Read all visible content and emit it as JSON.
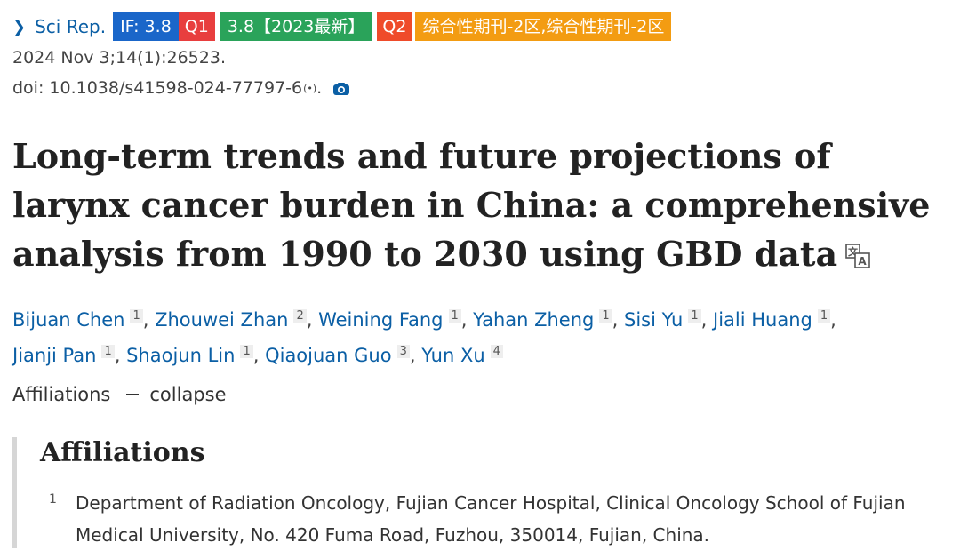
{
  "journal": {
    "name": "Sci Rep.",
    "badges": {
      "impact_factor": "IF: 3.8",
      "jcr_quartile": "Q1",
      "cas": "3.8【2023最新】",
      "cas_quartile": "Q2",
      "category": "综合性期刊-2区,综合性期刊-2区"
    }
  },
  "citation": "2024 Nov 3;14(1):26523.",
  "doi": {
    "text": "doi: 10.1038/s41598-024-77797-6",
    "suffix": "."
  },
  "title": "Long-term trends and future projections of larynx cancer burden in China: a comprehensive analysis from 1990 to 2030 using GBD data",
  "authors": [
    {
      "name": "Bijuan Chen",
      "aff": "1"
    },
    {
      "name": "Zhouwei Zhan",
      "aff": "2"
    },
    {
      "name": "Weining Fang",
      "aff": "1"
    },
    {
      "name": "Yahan Zheng",
      "aff": "1"
    },
    {
      "name": "Sisi Yu",
      "aff": "1"
    },
    {
      "name": "Jiali Huang",
      "aff": "1"
    },
    {
      "name": "Jianji Pan",
      "aff": "1"
    },
    {
      "name": "Shaojun Lin",
      "aff": "1"
    },
    {
      "name": "Qiaojuan Guo",
      "aff": "3"
    },
    {
      "name": "Yun Xu",
      "aff": "4"
    }
  ],
  "affiliations_toggle": {
    "label": "Affiliations",
    "action": "collapse"
  },
  "affiliations": {
    "heading": "Affiliations",
    "items": [
      {
        "num": "1",
        "text": "Department of Radiation Oncology, Fujian Cancer Hospital, Clinical Oncology School of Fujian Medical University, No. 420 Fuma Road, Fuzhou, 350014, Fujian, China."
      }
    ]
  },
  "colors": {
    "link": "#0b5fa5",
    "if_badge": "#1a66c9",
    "q1_badge": "#e83e3e",
    "cas_badge": "#2aa35a",
    "q2_badge": "#ef4b2a",
    "category_badge": "#f39c12"
  },
  "icons": [
    "chevron-right-icon",
    "broadcast-icon",
    "camera-icon",
    "translate-icon"
  ]
}
